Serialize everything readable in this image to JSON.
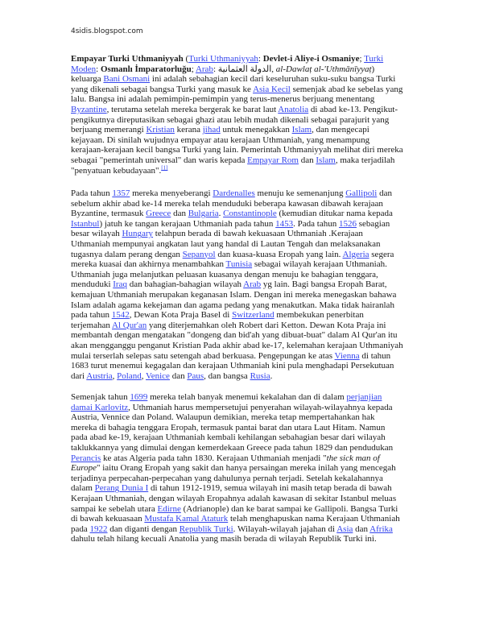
{
  "header": {
    "site": "4sidis.blogspot.com"
  },
  "colors": {
    "link": "#3344ee",
    "text": "#1a1a1a"
  },
  "doc": {
    "p": [
      [
        [
          [
            "b",
            "Empayar Turki Uthmaniyyah"
          ],
          [
            "t",
            " ("
          ],
          [
            "a",
            "Turki Uthmaniyyah"
          ],
          [
            "t",
            ": "
          ],
          [
            "b",
            "Devlet-i Aliye-i Osmaniye"
          ],
          [
            "t",
            "; "
          ],
          [
            "a",
            "Turki"
          ]
        ],
        [
          [
            "a",
            "Moden"
          ],
          [
            "t",
            ": "
          ],
          [
            "b",
            "Osmanlı İmparatorluğu"
          ],
          [
            "t",
            "; "
          ],
          [
            "a",
            "Arab"
          ],
          [
            "t",
            ": "
          ],
          [
            "t",
            "الدولة العثمانية"
          ],
          [
            "t",
            ", "
          ],
          [
            "i",
            "al-Dawlaṭ al-'Uthmānīyyaṭ"
          ],
          [
            "t",
            ")"
          ]
        ],
        [
          [
            "t",
            "keluarga "
          ],
          [
            "a",
            "Bani Osmani"
          ],
          [
            "t",
            " ini adalah sebahagian kecil dari keseluruhan suku-suku bangsa Turki"
          ]
        ],
        [
          [
            "t",
            "yang dikenali sebagai bangsa Turki yang masuk ke "
          ],
          [
            "a",
            "Asia Kecil"
          ],
          [
            "t",
            " semenjak abad ke sebelas yang"
          ]
        ],
        [
          [
            "t",
            "lalu. Bangsa ini adalah pemimpin-pemimpin yang terus-menerus berjuang menentang"
          ]
        ],
        [
          [
            "a",
            "Byzantine"
          ],
          [
            "t",
            ", terutama setelah mereka bergerak ke barat laut "
          ],
          [
            "a",
            "Anatolia"
          ],
          [
            "t",
            " di abad ke-13. Pengikut-"
          ]
        ],
        [
          [
            "t",
            "pengikutnya direputasikan sebagai ghazi atau lebih mudah dikenali sebagai parajurit yang"
          ]
        ],
        [
          [
            "t",
            "berjuang memerangi "
          ],
          [
            "a",
            "Kristian"
          ],
          [
            "t",
            " kerana "
          ],
          [
            "a",
            "jihad"
          ],
          [
            "t",
            " untuk menegakkan "
          ],
          [
            "a",
            "Islam"
          ],
          [
            "t",
            ", dan mengecapi"
          ]
        ],
        [
          [
            "t",
            "kejayaan. Di sinilah wujudnya empayar atau kerajaan Uthmaniah, yang menampung"
          ]
        ],
        [
          [
            "t",
            "kerajaan-kerajaan kecil bangsa Turki yang lain. Pemerintah Uthmaniyyah melihat diri mereka"
          ]
        ],
        [
          [
            "t",
            "sebagai \"pemerintah universal\" dan waris kepada "
          ],
          [
            "a",
            "Empayar Rom"
          ],
          [
            "t",
            " dan "
          ],
          [
            "a",
            "Islam"
          ],
          [
            "t",
            ", maka terjadilah"
          ]
        ],
        [
          [
            "t",
            "\"penyatuan kebudayaan\"."
          ],
          [
            "sup",
            "[1]"
          ]
        ]
      ],
      [
        [
          [
            "t",
            "Pada tahun "
          ],
          [
            "a",
            "1357"
          ],
          [
            "t",
            " mereka menyeberangi "
          ],
          [
            "a",
            "Dardenalles"
          ],
          [
            "t",
            " menuju ke semenanjung "
          ],
          [
            "a",
            "Gallipoli"
          ],
          [
            "t",
            " dan"
          ]
        ],
        [
          [
            "t",
            "sebelum akhir abad ke-14 mereka telah menduduki beberapa kawasan dibawah kerajaan"
          ]
        ],
        [
          [
            "t",
            "Byzantine, termasuk "
          ],
          [
            "a",
            "Greece"
          ],
          [
            "t",
            " dan "
          ],
          [
            "a",
            "Bulgaria"
          ],
          [
            "t",
            ". "
          ],
          [
            "a",
            "Constantinople"
          ],
          [
            "t",
            " (kemudian ditukar nama kepada"
          ]
        ],
        [
          [
            "a",
            "Istanbul"
          ],
          [
            "t",
            ") jatuh ke tangan kerajaan Uthmaniah pada tahun "
          ],
          [
            "a",
            "1453"
          ],
          [
            "t",
            ". Pada tahun "
          ],
          [
            "a",
            "1526"
          ],
          [
            "t",
            " sebagian"
          ]
        ],
        [
          [
            "t",
            "besar wilayah "
          ],
          [
            "a",
            "Hungary"
          ],
          [
            "t",
            " telahpun berada di bawah kekuasaan Uthmaniah .Kerajaan"
          ]
        ],
        [
          [
            "t",
            "Uthmaniah mempunyai angkatan laut yang handal di Lautan Tengah dan melaksanakan"
          ]
        ],
        [
          [
            "t",
            "tugasnya dalam perang dengan "
          ],
          [
            "a",
            "Sepanyol"
          ],
          [
            "t",
            " dan kuasa-kuasa Eropah yang lain. "
          ],
          [
            "a",
            "Algeria"
          ],
          [
            "t",
            " segera"
          ]
        ],
        [
          [
            "t",
            "mereka kuasai dan akhirnya menambahkan "
          ],
          [
            "a",
            "Tunisia"
          ],
          [
            "t",
            " sebagai wilayah kerajaan Uthmaniah."
          ]
        ],
        [
          [
            "t",
            "Uthmaniah juga melanjutkan peluasan kuasanya dengan menuju ke bahagian tenggara,"
          ]
        ],
        [
          [
            "t",
            "menduduki "
          ],
          [
            "a",
            "Iraq"
          ],
          [
            "t",
            " dan bahagian-bahagian wilayah "
          ],
          [
            "a",
            "Arab"
          ],
          [
            "t",
            " yg lain. Bagi bangsa Eropah Barat,"
          ]
        ],
        [
          [
            "t",
            "kemajuan Uthmaniah merupakan keganasan Islam. Dengan ini mereka menegaskan bahawa"
          ]
        ],
        [
          [
            "t",
            "Islam adalah agama kekejaman dan agama pedang yang menakutkan. Maka tidak hairanlah"
          ]
        ],
        [
          [
            "t",
            "pada tahun "
          ],
          [
            "a",
            "1542"
          ],
          [
            "t",
            ", Dewan Kota Praja Basel di "
          ],
          [
            "a",
            "Switzerland"
          ],
          [
            "t",
            " membekukan penerbitan"
          ]
        ],
        [
          [
            "t",
            "terjemahan "
          ],
          [
            "a",
            "Al Qur'an"
          ],
          [
            "t",
            " yang diterjemahkan oleh Robert dari Ketton. Dewan Kota Praja ini"
          ]
        ],
        [
          [
            "t",
            "membantah dengan mengatakan \"dongeng dan bid'ah yang dibuat-buat\" dalam Al Qur'an itu"
          ]
        ],
        [
          [
            "t",
            "akan mengganggu penganut Kristian Pada akhir abad ke-17, kelemahan kerajaan Uthmaniyah"
          ]
        ],
        [
          [
            "t",
            "mulai terserlah selepas satu setengah abad berkuasa. Pengepungan ke atas "
          ],
          [
            "a",
            "Vienna"
          ],
          [
            "t",
            " di tahun"
          ]
        ],
        [
          [
            "t",
            "1683 turut menemui kegagalan dan kerajaan Uthmaniah kini pula menghadapi Persekutuan"
          ]
        ],
        [
          [
            "t",
            "dari "
          ],
          [
            "a",
            "Austria"
          ],
          [
            "t",
            ", "
          ],
          [
            "a",
            "Poland"
          ],
          [
            "t",
            ", "
          ],
          [
            "a",
            "Venice"
          ],
          [
            "t",
            " dan "
          ],
          [
            "a",
            "Paus"
          ],
          [
            "t",
            ", dan bangsa "
          ],
          [
            "a",
            "Rusia"
          ],
          [
            "t",
            "."
          ]
        ]
      ],
      [
        [
          [
            "t",
            "Semenjak tahun "
          ],
          [
            "a",
            "1699"
          ],
          [
            "t",
            " mereka telah banyak menemui kekalahan dan di dalam "
          ],
          [
            "a",
            "perjanjian"
          ]
        ],
        [
          [
            "a",
            "damai Karlovitz"
          ],
          [
            "t",
            ", Uthmaniah harus mempersetujui penyerahan wilayah-wilayahnya kepada"
          ]
        ],
        [
          [
            "t",
            "Austria, Vennice dan Poland. Walaupun demikian, mereka tetap mempertahankan hak"
          ]
        ],
        [
          [
            "t",
            "mereka di bahagia tenggara Eropah, termasuk pantai barat dan utara Laut Hitam. Namun"
          ]
        ],
        [
          [
            "t",
            "pada abad ke-19, kerajaan Uthmaniah kembali kehilangan sebahagian besar dari wilayah"
          ]
        ],
        [
          [
            "t",
            "taklukkannya yang dimulai dengan kemerdekaan Greece pada tahun 1829 dan pendudukan"
          ]
        ],
        [
          [
            "a",
            "Perancis"
          ],
          [
            "t",
            " ke atas Algeria pada tahn 1830. Kerajaan Uthmaniah menjadi \""
          ],
          [
            "i",
            "the sick man of"
          ]
        ],
        [
          [
            "i",
            "Europe"
          ],
          [
            "t",
            "\" iaitu Orang Eropah yang sakit dan hanya persaingan mereka inilah yang mencegah"
          ]
        ],
        [
          [
            "t",
            "terjadinya perpecahan-perpecahan yang dahulunya pernah terjadi. Setelah kekalahannya"
          ]
        ],
        [
          [
            "t",
            "dalam "
          ],
          [
            "a",
            "Perang Dunia I"
          ],
          [
            "t",
            " di tahun 1912-1919, semua wilayah ini masih tetap berada di bawah"
          ]
        ],
        [
          [
            "t",
            "Kerajaan Uthmaniah, dengan wilayah Eropahnya adalah kawasan di sekitar Istanbul meluas"
          ]
        ],
        [
          [
            "t",
            "sampai ke sebelah utara "
          ],
          [
            "a",
            "Edirne"
          ],
          [
            "t",
            " (Adrianople) dan ke barat sampai ke Gallipoli. Bangsa Turki"
          ]
        ],
        [
          [
            "t",
            "di bawah kekuasaan "
          ],
          [
            "a",
            "Mustafa Kamal Ataturk"
          ],
          [
            "t",
            " telah menghapuskan nama Kerajaan Uthmaniah"
          ]
        ],
        [
          [
            "t",
            "pada "
          ],
          [
            "a",
            "1922"
          ],
          [
            "t",
            " dan diganti dengan "
          ],
          [
            "a",
            "Republik Turki"
          ],
          [
            "t",
            ". Wilayah-wilayah jajahan di "
          ],
          [
            "a",
            "Asia"
          ],
          [
            "t",
            " dan "
          ],
          [
            "a",
            "Afrika"
          ]
        ],
        [
          [
            "t",
            "dahulu telah hilang kecuali Anatolia yang masih berada di wilayah Republik Turki ini."
          ]
        ]
      ]
    ]
  }
}
